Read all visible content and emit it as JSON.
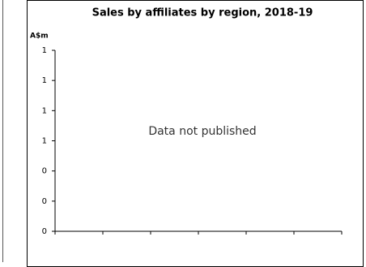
{
  "chart_data": {
    "type": "bar",
    "title": "Sales by affiliates by region, 2018-19",
    "y_label": "A$m",
    "annotation": "Data not published",
    "categories": [
      null,
      null,
      null,
      null,
      null,
      null
    ],
    "ylim": [
      0,
      1.2
    ],
    "yticks": [
      {
        "value": 0,
        "label": "0"
      },
      {
        "value": 0.2,
        "label": "0"
      },
      {
        "value": 0.4,
        "label": "0"
      },
      {
        "value": 0.6,
        "label": "1"
      },
      {
        "value": 0.8,
        "label": "1"
      },
      {
        "value": 1.0,
        "label": "1"
      },
      {
        "value": 1.2,
        "label": "1"
      }
    ],
    "grid": false
  }
}
